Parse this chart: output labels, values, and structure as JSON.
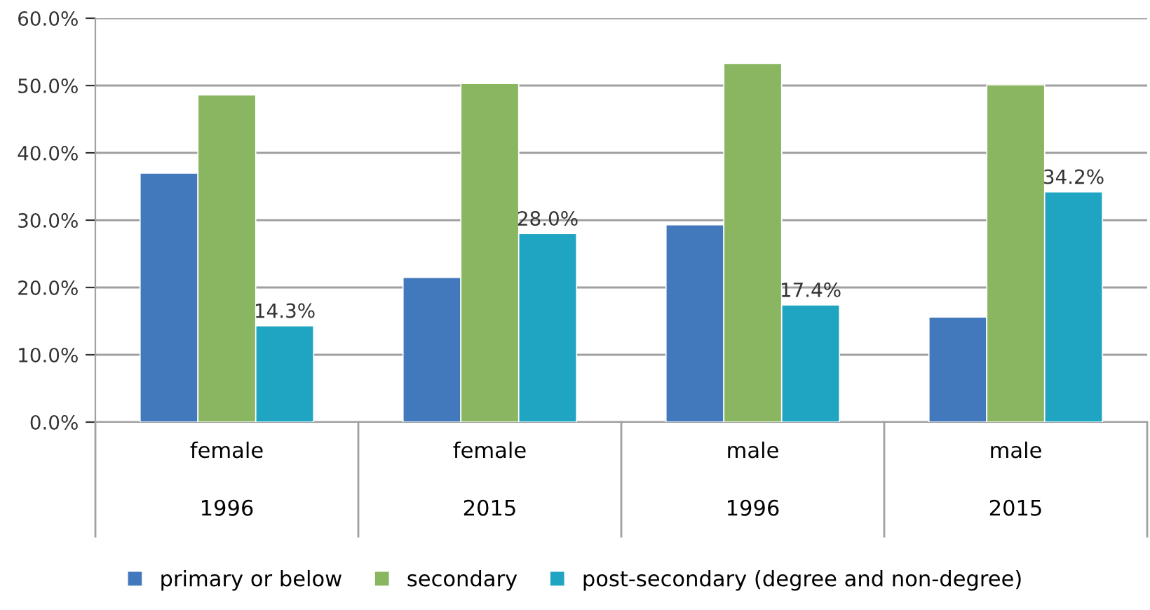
{
  "chart_data": {
    "type": "bar",
    "categories": [
      "female\n\n1996",
      "female\n\n2015",
      "male\n\n1996",
      "male\n\n2015"
    ],
    "series": [
      {
        "name": "primary or below",
        "color": "#4279bc",
        "values": [
          37.0,
          21.5,
          29.3,
          15.6
        ]
      },
      {
        "name": "secondary",
        "color": "#8ab661",
        "values": [
          48.6,
          50.3,
          53.3,
          50.1
        ]
      },
      {
        "name": "post-secondary (degree and non-degree)",
        "color": "#1fa4c1",
        "values": [
          14.3,
          28.0,
          17.4,
          34.2
        ],
        "value_labels": [
          "14.3%",
          "28.0%",
          "17.4%",
          "34.2%"
        ]
      }
    ],
    "ylim": [
      0,
      60
    ],
    "yticks": [
      {
        "value": 0,
        "label": "0.0%"
      },
      {
        "value": 10,
        "label": "10.0%"
      },
      {
        "value": 20,
        "label": "20.0%"
      },
      {
        "value": 30,
        "label": "30.0%"
      },
      {
        "value": 40,
        "label": "40.0%"
      },
      {
        "value": 50,
        "label": "50.0%"
      },
      {
        "value": 60,
        "label": "60.0%"
      }
    ],
    "grid": "y",
    "legend": "bottom"
  }
}
